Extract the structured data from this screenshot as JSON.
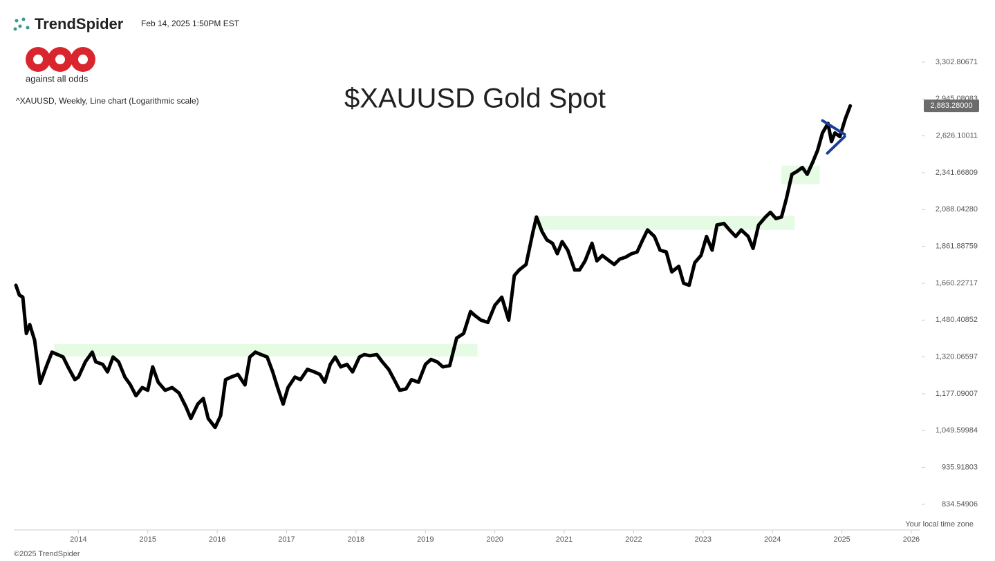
{
  "brand": "TrendSpider",
  "timestamp": "Feb 14, 2025 1:50PM EST",
  "logo_tagline": "against all odds",
  "symbol_info": "^XAUUSD, Weekly, Line chart (Logarithmic scale)",
  "timezone_note": "Your local time zone",
  "copyright": "©2025 TrendSpider",
  "chart_data": {
    "type": "line",
    "title": "$XAUUSD Gold Spot",
    "log_scale": true,
    "xlim": [
      2013.07,
      2026.12
    ],
    "xticks": [
      2014,
      2015,
      2016,
      2017,
      2018,
      2019,
      2020,
      2021,
      2022,
      2023,
      2024,
      2025,
      2026
    ],
    "ylim": [
      770.7,
      3485
    ],
    "yticks": [
      {
        "value": 834.54906,
        "label": "834.54906"
      },
      {
        "value": 935.91803,
        "label": "935.91803"
      },
      {
        "value": 1049.59984,
        "label": "1,049.59984"
      },
      {
        "value": 1177.09007,
        "label": "1,177.09007"
      },
      {
        "value": 1320.06597,
        "label": "1,320.06597"
      },
      {
        "value": 1480.40852,
        "label": "1,480.40852"
      },
      {
        "value": 1660.22717,
        "label": "1,660.22717"
      },
      {
        "value": 1861.88759,
        "label": "1,861.88759"
      },
      {
        "value": 2088.0428,
        "label": "2,088.04280"
      },
      {
        "value": 2341.66809,
        "label": "2,341.66809"
      },
      {
        "value": 2626.10011,
        "label": "2,626.10011"
      },
      {
        "value": 2945.08083,
        "label": "2,945.08083"
      },
      {
        "value": 3302.80671,
        "label": "3,302.80671"
      }
    ],
    "last_price": {
      "value": 2883.28,
      "label": "2,883.28000"
    },
    "zones": [
      {
        "x": [
          2013.65,
          2019.75
        ],
        "y": [
          1322,
          1374
        ]
      },
      {
        "x": [
          2020.55,
          2024.32
        ],
        "y": [
          1960,
          2046
        ]
      },
      {
        "x": [
          2024.13,
          2024.68
        ],
        "y": [
          2259,
          2394
        ]
      }
    ],
    "trendlines": [
      {
        "x": [
          2024.72,
          2025.04
        ],
        "y": [
          2754,
          2638
        ]
      },
      {
        "x": [
          2024.79,
          2025.04
        ],
        "y": [
          2488,
          2620
        ]
      }
    ],
    "trendline_color": "#1a3e9a",
    "series": [
      {
        "name": "^XAUUSD",
        "color": "#000000",
        "x": [
          2013.1,
          2013.15,
          2013.2,
          2013.25,
          2013.3,
          2013.37,
          2013.45,
          2013.55,
          2013.62,
          2013.7,
          2013.78,
          2013.85,
          2013.95,
          2014.0,
          2014.1,
          2014.2,
          2014.25,
          2014.35,
          2014.42,
          2014.5,
          2014.58,
          2014.67,
          2014.75,
          2014.83,
          2014.92,
          2015.0,
          2015.07,
          2015.15,
          2015.25,
          2015.35,
          2015.45,
          2015.55,
          2015.62,
          2015.72,
          2015.8,
          2015.87,
          2015.97,
          2016.05,
          2016.12,
          2016.2,
          2016.3,
          2016.4,
          2016.47,
          2016.55,
          2016.63,
          2016.72,
          2016.8,
          2016.87,
          2016.95,
          2017.02,
          2017.12,
          2017.2,
          2017.3,
          2017.4,
          2017.48,
          2017.55,
          2017.63,
          2017.7,
          2017.78,
          2017.87,
          2017.95,
          2018.05,
          2018.12,
          2018.2,
          2018.3,
          2018.38,
          2018.47,
          2018.55,
          2018.63,
          2018.72,
          2018.8,
          2018.9,
          2019.0,
          2019.08,
          2019.17,
          2019.25,
          2019.35,
          2019.45,
          2019.55,
          2019.65,
          2019.72,
          2019.8,
          2019.9,
          2020.0,
          2020.1,
          2020.2,
          2020.28,
          2020.35,
          2020.45,
          2020.55,
          2020.6,
          2020.68,
          2020.75,
          2020.83,
          2020.9,
          2020.97,
          2021.05,
          2021.15,
          2021.22,
          2021.3,
          2021.4,
          2021.47,
          2021.55,
          2021.65,
          2021.72,
          2021.8,
          2021.88,
          2021.97,
          2022.05,
          2022.13,
          2022.2,
          2022.3,
          2022.38,
          2022.47,
          2022.55,
          2022.65,
          2022.72,
          2022.8,
          2022.88,
          2022.97,
          2023.05,
          2023.13,
          2023.2,
          2023.3,
          2023.38,
          2023.47,
          2023.55,
          2023.65,
          2023.72,
          2023.8,
          2023.9,
          2023.97,
          2024.05,
          2024.13,
          2024.2,
          2024.28,
          2024.35,
          2024.43,
          2024.5,
          2024.58,
          2024.65,
          2024.72,
          2024.8,
          2024.85,
          2024.9,
          2024.97,
          2025.05,
          2025.12
        ],
        "values": [
          1650,
          1600,
          1590,
          1420,
          1460,
          1390,
          1216,
          1290,
          1340,
          1330,
          1320,
          1280,
          1230,
          1240,
          1300,
          1340,
          1300,
          1290,
          1260,
          1320,
          1300,
          1240,
          1210,
          1170,
          1200,
          1190,
          1280,
          1220,
          1190,
          1200,
          1180,
          1130,
          1090,
          1140,
          1160,
          1090,
          1060,
          1100,
          1230,
          1240,
          1250,
          1210,
          1320,
          1340,
          1330,
          1320,
          1260,
          1200,
          1140,
          1200,
          1240,
          1230,
          1270,
          1260,
          1250,
          1220,
          1290,
          1320,
          1280,
          1290,
          1260,
          1320,
          1330,
          1325,
          1330,
          1300,
          1270,
          1230,
          1190,
          1195,
          1230,
          1220,
          1290,
          1310,
          1300,
          1280,
          1285,
          1400,
          1420,
          1520,
          1500,
          1480,
          1470,
          1550,
          1590,
          1480,
          1700,
          1730,
          1760,
          1950,
          2040,
          1950,
          1900,
          1880,
          1820,
          1890,
          1840,
          1730,
          1730,
          1780,
          1880,
          1780,
          1810,
          1780,
          1760,
          1790,
          1800,
          1820,
          1830,
          1900,
          1960,
          1920,
          1840,
          1830,
          1720,
          1750,
          1660,
          1650,
          1770,
          1810,
          1920,
          1840,
          1990,
          2000,
          1960,
          1920,
          1960,
          1920,
          1850,
          1990,
          2040,
          2070,
          2030,
          2040,
          2160,
          2330,
          2350,
          2380,
          2330,
          2420,
          2510,
          2650,
          2730,
          2580,
          2650,
          2620,
          2770,
          2883
        ]
      }
    ]
  }
}
